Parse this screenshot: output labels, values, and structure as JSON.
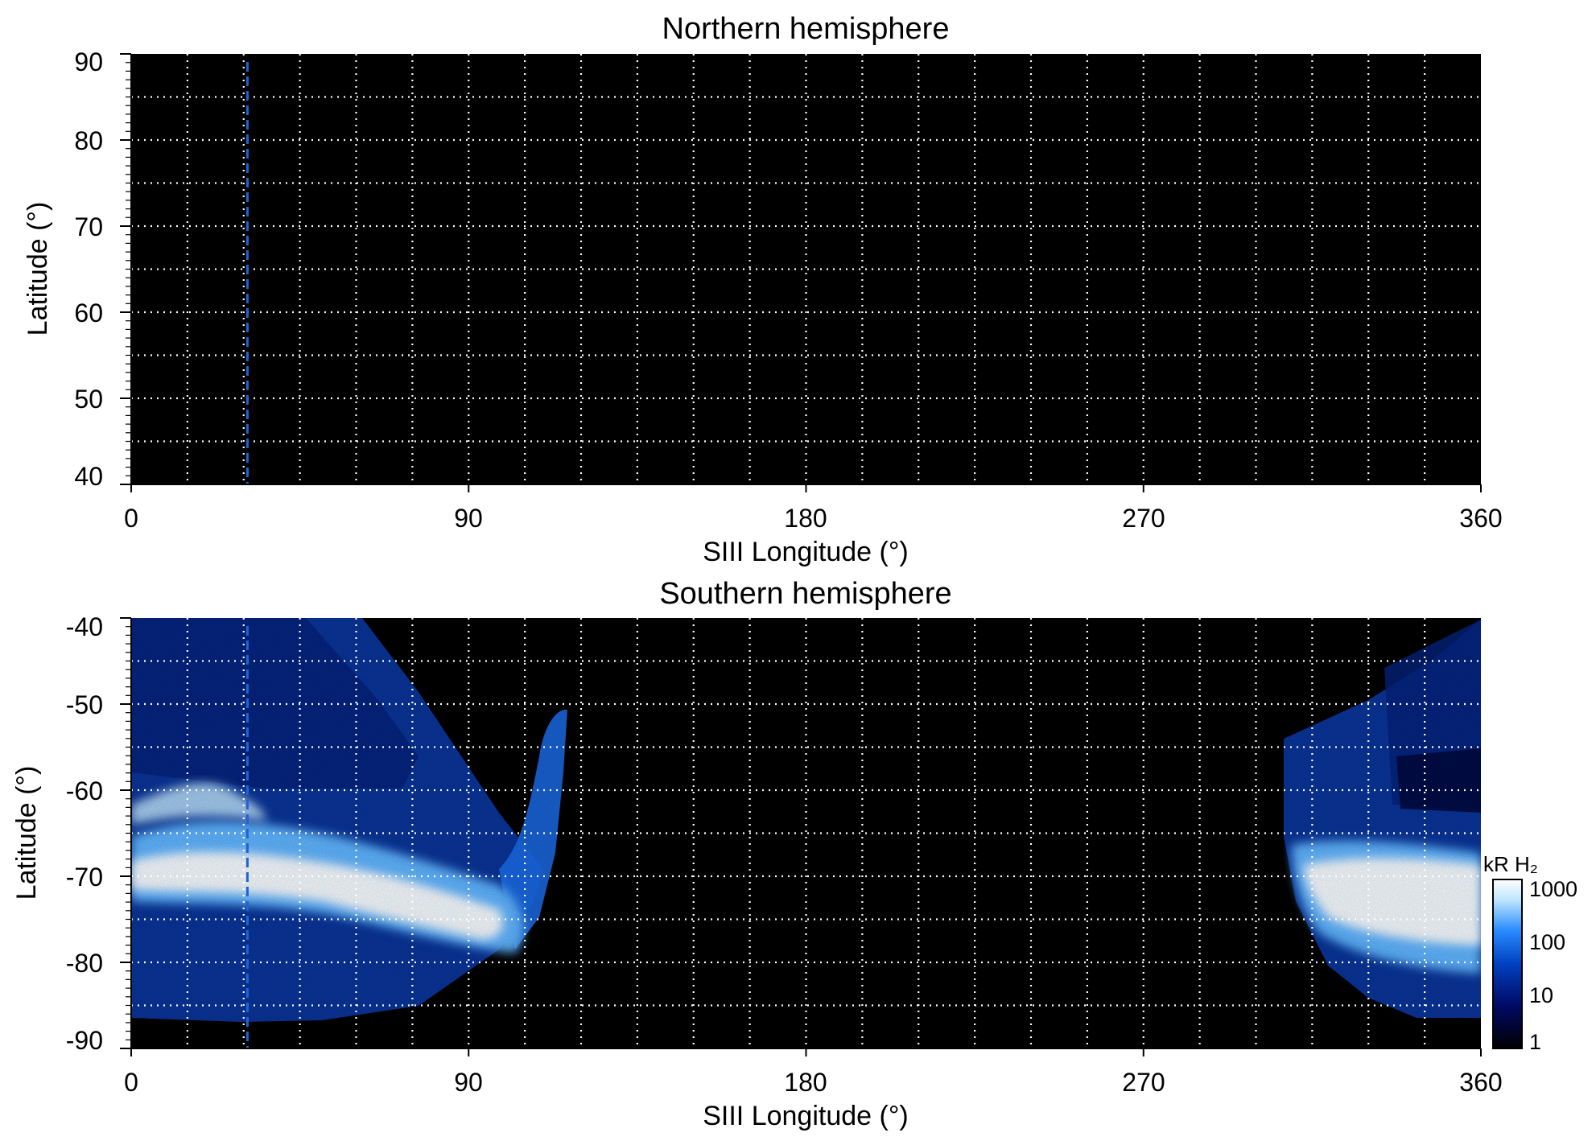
{
  "chart_data": [
    {
      "type": "heatmap",
      "title": "Northern hemisphere",
      "xlabel": "SIII Longitude (°)",
      "ylabel": "Latitude (°)",
      "xlim": [
        0,
        360
      ],
      "ylim": [
        40,
        90
      ],
      "x_ticks": [
        "0",
        "90",
        "180",
        "270",
        "360"
      ],
      "y_ticks": [
        "40",
        "50",
        "60",
        "70",
        "80",
        "90"
      ],
      "grid": "dotted, 15° longitude × 5° latitude",
      "emission": "none",
      "reference_line": {
        "style": "dashed",
        "color": "#1e64d2",
        "longitude": 31
      }
    },
    {
      "type": "heatmap",
      "title": "Southern hemisphere",
      "xlabel": "SIII Longitude (°)",
      "ylabel": "Latitude (°)",
      "xlim": [
        0,
        360
      ],
      "ylim": [
        -90,
        -40
      ],
      "x_ticks": [
        "0",
        "90",
        "180",
        "270",
        "360"
      ],
      "y_ticks": [
        "-40",
        "-50",
        "-60",
        "-70",
        "-80",
        "-90"
      ],
      "grid": "dotted, 15° longitude × 5° latitude",
      "reference_line": {
        "style": "dashed",
        "color": "#1e64d2",
        "longitude": 31
      },
      "auroral_oval_segments": [
        {
          "lon": [
            0,
            20,
            40,
            60,
            80,
            100,
            110,
            115
          ],
          "lat": [
            -71,
            -70,
            -69,
            -70,
            -72,
            -75,
            -74,
            -73
          ]
        },
        {
          "lon": [
            310,
            330,
            360
          ],
          "lat": [
            -72,
            -73,
            -74
          ]
        }
      ],
      "colorbar": {
        "label": "kR H₂",
        "scale": "log",
        "ticks": [
          "1000",
          "100",
          "10",
          "1"
        ],
        "range": [
          1,
          1000
        ],
        "colors": [
          "#000000",
          "#000a64",
          "#0040c0",
          "#2a8cff",
          "#bfe6ff",
          "#ffffff"
        ]
      }
    }
  ]
}
